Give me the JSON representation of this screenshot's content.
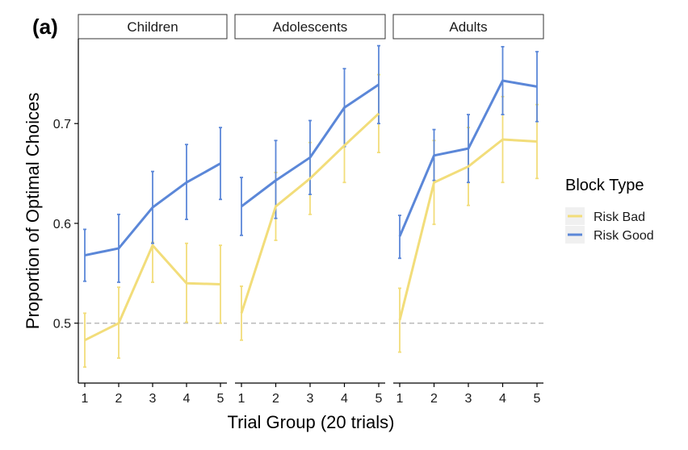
{
  "panel_label": "(a)",
  "chart_data": {
    "type": "line",
    "xlabel": "Trial Group (20 trials)",
    "ylabel": "Proportion of Optimal Choices",
    "ylim": [
      0.44,
      0.785
    ],
    "yticks": [
      0.5,
      0.6,
      0.7
    ],
    "ytick_labels": [
      "0.5",
      "0.6",
      "0.7"
    ],
    "x": [
      1,
      2,
      3,
      4,
      5
    ],
    "xtick_labels": [
      "1",
      "2",
      "3",
      "4",
      "5"
    ],
    "reference_line": 0.5,
    "legend": {
      "title": "Block Type",
      "position": "right"
    },
    "colors": {
      "Risk Bad": "#f2dd7a",
      "Risk Good": "#5b87d8",
      "reference": "#bbbbbb"
    },
    "facets": [
      {
        "name": "Children",
        "series": [
          {
            "name": "Risk Bad",
            "values": [
              0.483,
              0.5,
              0.578,
              0.54,
              0.539
            ],
            "lower": [
              0.456,
              0.465,
              0.541,
              0.501,
              0.5
            ],
            "upper": [
              0.51,
              0.536,
              0.581,
              0.58,
              0.578
            ]
          },
          {
            "name": "Risk Good",
            "values": [
              0.568,
              0.575,
              0.616,
              0.641,
              0.66
            ],
            "lower": [
              0.542,
              0.541,
              0.58,
              0.604,
              0.624
            ],
            "upper": [
              0.594,
              0.609,
              0.652,
              0.679,
              0.696
            ]
          }
        ]
      },
      {
        "name": "Adolescents",
        "series": [
          {
            "name": "Risk Bad",
            "values": [
              0.51,
              0.617,
              0.645,
              0.678,
              0.71
            ],
            "lower": [
              0.483,
              0.583,
              0.609,
              0.641,
              0.671
            ],
            "upper": [
              0.537,
              0.651,
              0.681,
              0.716,
              0.749
            ]
          },
          {
            "name": "Risk Good",
            "values": [
              0.617,
              0.643,
              0.666,
              0.716,
              0.739
            ],
            "lower": [
              0.588,
              0.605,
              0.629,
              0.677,
              0.7
            ],
            "upper": [
              0.646,
              0.683,
              0.703,
              0.755,
              0.778
            ]
          }
        ]
      },
      {
        "name": "Adults",
        "series": [
          {
            "name": "Risk Bad",
            "values": [
              0.503,
              0.641,
              0.657,
              0.684,
              0.682
            ],
            "lower": [
              0.471,
              0.599,
              0.618,
              0.641,
              0.645
            ],
            "upper": [
              0.535,
              0.683,
              0.696,
              0.727,
              0.719
            ]
          },
          {
            "name": "Risk Good",
            "values": [
              0.587,
              0.668,
              0.675,
              0.743,
              0.737
            ],
            "lower": [
              0.565,
              0.643,
              0.641,
              0.709,
              0.702
            ],
            "upper": [
              0.608,
              0.694,
              0.709,
              0.777,
              0.772
            ]
          }
        ]
      }
    ]
  }
}
